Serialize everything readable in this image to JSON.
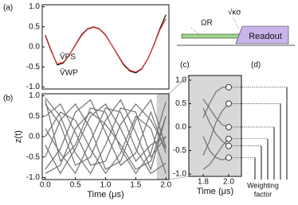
{
  "chart_data": [
    {
      "type": "line",
      "panel": "(a)",
      "x": [
        0,
        0.1,
        0.2,
        0.3,
        0.4,
        0.5,
        0.6,
        0.7,
        0.8,
        0.9,
        1.0,
        1.1,
        1.2,
        1.3,
        1.4,
        1.5,
        1.6,
        1.7,
        1.8,
        1.9,
        2.0
      ],
      "series": [
        {
          "name": "V̄PS",
          "color": "#111111",
          "values": [
            0.3,
            -0.1,
            -0.45,
            -0.4,
            -0.2,
            0.05,
            0.3,
            0.45,
            0.5,
            0.45,
            0.3,
            0.05,
            -0.2,
            -0.45,
            -0.6,
            -0.65,
            -0.55,
            -0.3,
            0.05,
            0.45,
            0.8
          ]
        },
        {
          "name": "V̄WP",
          "color": "#e03030",
          "values": [
            0.28,
            -0.12,
            -0.43,
            -0.38,
            -0.2,
            0.04,
            0.28,
            0.44,
            0.49,
            0.44,
            0.29,
            0.05,
            -0.19,
            -0.43,
            -0.58,
            -0.63,
            -0.54,
            -0.3,
            0.04,
            0.42,
            0.7
          ]
        }
      ],
      "xlim": [
        -0.05,
        2.05
      ],
      "ylim": [
        -1.05,
        1.05
      ],
      "yticks": [
        {
          "value": 1.0,
          "label": "1.0"
        },
        0.5,
        {
          "value": 0.0,
          "label": "0.0"
        },
        -0.5,
        {
          "value": -1.0,
          "label": "-1.0"
        }
      ]
    },
    {
      "type": "line",
      "panel": "(b)",
      "color": "#6e7370",
      "shaded_x": [
        1.85,
        2.05
      ],
      "x": [
        0,
        0.25,
        0.5,
        0.75,
        1.0,
        1.25,
        1.5,
        1.75,
        2.0
      ],
      "series": [
        {
          "values": [
            0.9,
            -0.6,
            -0.2,
            0.7,
            0.6,
            -0.3,
            -0.9,
            -0.4,
            0.85
          ]
        },
        {
          "values": [
            0.8,
            0.3,
            -0.7,
            -0.5,
            0.4,
            0.9,
            0.1,
            -0.8,
            0.5
          ]
        },
        {
          "values": [
            -0.2,
            -0.9,
            -0.3,
            0.5,
            0.8,
            0.2,
            -0.6,
            -0.2,
            0.0
          ]
        },
        {
          "values": [
            0.5,
            0.8,
            0.1,
            -0.7,
            -0.6,
            0.3,
            0.8,
            0.4,
            -0.3
          ]
        },
        {
          "values": [
            -0.8,
            -0.3,
            0.6,
            0.9,
            0.1,
            -0.7,
            -0.4,
            0.6,
            -0.4
          ]
        },
        {
          "values": [
            0.2,
            -0.4,
            -0.9,
            -0.1,
            0.7,
            0.6,
            -0.3,
            -0.9,
            -0.65
          ]
        },
        {
          "values": [
            -0.5,
            0.4,
            0.8,
            0.2,
            -0.8,
            -0.6,
            0.4,
            0.9,
            -0.25
          ]
        },
        {
          "values": [
            0.95,
            0.5,
            -0.4,
            -0.9,
            -0.2,
            0.7,
            0.6,
            -0.5,
            0.0
          ]
        },
        {
          "values": [
            -0.9,
            -0.7,
            0.2,
            0.6,
            0.3,
            -0.2,
            -0.8,
            -0.6,
            0.5
          ]
        },
        {
          "values": [
            0.0,
            0.6,
            0.4,
            -0.3,
            -0.9,
            -0.4,
            0.5,
            0.2,
            -0.9
          ]
        }
      ],
      "xlim": [
        -0.05,
        2.05
      ],
      "ylim": [
        -1.05,
        1.05
      ],
      "xticks": [
        {
          "value": 0.0,
          "label": "0.0"
        },
        0.5,
        {
          "value": 1.0,
          "label": "1.0"
        },
        1.5,
        {
          "value": 2.0,
          "label": "2.0"
        }
      ],
      "yticks": [
        {
          "value": 1.0,
          "label": "1.0"
        },
        0.5,
        {
          "value": 0.0,
          "label": "0.0"
        },
        -0.5,
        {
          "value": -1.0,
          "label": "-1.0"
        }
      ],
      "xlabel": "Time (μs)",
      "ylabel": "z(t)"
    },
    {
      "type": "line",
      "panel": "(c)",
      "color": "#6e7370",
      "markers": true,
      "x": [
        1.8,
        1.85,
        1.9,
        1.95,
        2.0
      ],
      "series": [
        {
          "values": [
            0.2,
            0.5,
            0.75,
            0.85,
            0.85
          ]
        },
        {
          "values": [
            -0.6,
            -0.3,
            0.1,
            0.35,
            0.5
          ]
        },
        {
          "values": [
            0.6,
            0.4,
            0.2,
            0.05,
            0.0
          ]
        },
        {
          "values": [
            -0.9,
            -0.8,
            -0.6,
            -0.4,
            -0.25
          ]
        },
        {
          "values": [
            0.4,
            0.1,
            -0.15,
            -0.3,
            -0.4
          ]
        },
        {
          "values": [
            -0.2,
            -0.5,
            -0.65,
            -0.7,
            -0.65
          ]
        }
      ],
      "xlim": [
        1.6875,
        2.1
      ],
      "ylim": [
        -1.05,
        1.1
      ],
      "xticks": [
        1.8,
        {
          "value": 2.0,
          "label": "2.0"
        }
      ],
      "yticks": [
        {
          "value": 1.0,
          "label": "1.0"
        },
        0.5,
        {
          "value": 0.0,
          "label": "0.0"
        },
        -0.5,
        {
          "value": -1.0,
          "label": "-1.0"
        }
      ],
      "xlabel": "Time (μs)"
    }
  ],
  "panel_d": {
    "label": "(d)",
    "caption": [
      "Weighting",
      "factor"
    ]
  },
  "schematic": {
    "drive": "ΩR",
    "rate": "√κσ",
    "readout": "Readout"
  }
}
